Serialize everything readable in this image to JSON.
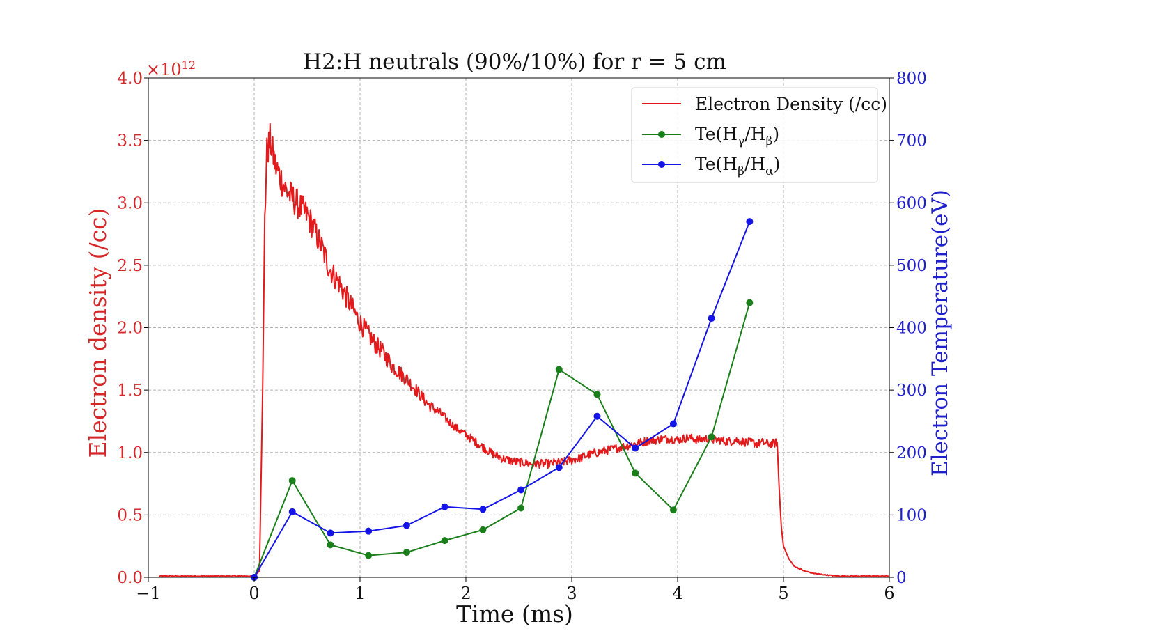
{
  "chart_data": {
    "type": "line",
    "title": "H2:H neutrals (90%/10%) for r = 5 cm",
    "xlabel": "Time (ms)",
    "ylabel_left": "Electron density (/cc)",
    "ylabel_right": "Electron Temperature(eV)",
    "left_axis_multiplier": "×10",
    "left_axis_exponent": "12",
    "xlim": [
      -1,
      6
    ],
    "ylim_left": [
      0.0,
      4.0
    ],
    "ylim_right": [
      0,
      800
    ],
    "grid": true,
    "legend_position": "top-right",
    "x_ticks": [
      {
        "value": -1,
        "label": "−1"
      },
      {
        "value": 0,
        "label": "0"
      },
      {
        "value": 1,
        "label": "1"
      },
      {
        "value": 2,
        "label": "2"
      },
      {
        "value": 3,
        "label": "3"
      },
      {
        "value": 4,
        "label": "4"
      },
      {
        "value": 5,
        "label": "5"
      },
      {
        "value": 6,
        "label": "6"
      }
    ],
    "y_left_ticks": [
      {
        "value": 0.0,
        "label": "0.0"
      },
      {
        "value": 0.5,
        "label": "0.5"
      },
      {
        "value": 1.0,
        "label": "1.0"
      },
      {
        "value": 1.5,
        "label": "1.5"
      },
      {
        "value": 2.0,
        "label": "2.0"
      },
      {
        "value": 2.5,
        "label": "2.5"
      },
      {
        "value": 3.0,
        "label": "3.0"
      },
      {
        "value": 3.5,
        "label": "3.5"
      },
      {
        "value": 4.0,
        "label": "4.0"
      }
    ],
    "y_right_ticks": [
      {
        "value": 0,
        "label": "0"
      },
      {
        "value": 100,
        "label": "100"
      },
      {
        "value": 200,
        "label": "200"
      },
      {
        "value": 300,
        "label": "300"
      },
      {
        "value": 400,
        "label": "400"
      },
      {
        "value": 500,
        "label": "500"
      },
      {
        "value": 600,
        "label": "600"
      },
      {
        "value": 700,
        "label": "700"
      },
      {
        "value": 800,
        "label": "800"
      }
    ],
    "colors": {
      "left_axis": "#d62728",
      "right_axis": "#1f1fcc",
      "grid": "#b0b0b0"
    },
    "series": [
      {
        "name": "Electron Density (/cc)",
        "axis": "left",
        "color": "#e31a1c",
        "marker": "none",
        "x": [
          -0.9,
          -0.5,
          -0.1,
          0.0,
          0.05,
          0.08,
          0.1,
          0.12,
          0.15,
          0.2,
          0.25,
          0.3,
          0.35,
          0.4,
          0.45,
          0.5,
          0.55,
          0.6,
          0.65,
          0.7,
          0.75,
          0.8,
          0.85,
          0.9,
          0.95,
          1.0,
          1.05,
          1.1,
          1.15,
          1.2,
          1.25,
          1.3,
          1.35,
          1.4,
          1.45,
          1.5,
          1.55,
          1.6,
          1.65,
          1.7,
          1.75,
          1.8,
          1.85,
          1.9,
          1.95,
          2.0,
          2.05,
          2.1,
          2.15,
          2.2,
          2.25,
          2.3,
          2.35,
          2.4,
          2.45,
          2.5,
          2.55,
          2.6,
          2.65,
          2.7,
          2.75,
          2.8,
          2.85,
          2.9,
          2.95,
          3.0,
          3.05,
          3.1,
          3.15,
          3.2,
          3.25,
          3.3,
          3.35,
          3.4,
          3.45,
          3.5,
          3.55,
          3.6,
          3.65,
          3.7,
          3.75,
          3.8,
          3.85,
          3.9,
          3.95,
          4.0,
          4.05,
          4.1,
          4.15,
          4.2,
          4.25,
          4.3,
          4.35,
          4.4,
          4.45,
          4.5,
          4.55,
          4.6,
          4.65,
          4.7,
          4.75,
          4.8,
          4.85,
          4.9,
          4.94,
          4.96,
          4.98,
          5.0,
          5.05,
          5.1,
          5.2,
          5.3,
          5.5,
          6.0
        ],
        "values": [
          0.01,
          0.01,
          0.01,
          0.01,
          0.05,
          1.5,
          2.9,
          3.4,
          3.5,
          3.3,
          3.2,
          3.1,
          3.05,
          3.0,
          2.95,
          2.9,
          2.82,
          2.72,
          2.62,
          2.5,
          2.42,
          2.36,
          2.28,
          2.2,
          2.12,
          2.04,
          1.98,
          1.92,
          1.86,
          1.82,
          1.76,
          1.7,
          1.66,
          1.62,
          1.58,
          1.53,
          1.48,
          1.43,
          1.38,
          1.35,
          1.32,
          1.28,
          1.24,
          1.2,
          1.17,
          1.14,
          1.11,
          1.08,
          1.05,
          1.02,
          0.99,
          0.97,
          0.95,
          0.94,
          0.93,
          0.92,
          0.92,
          0.91,
          0.91,
          0.91,
          0.91,
          0.91,
          0.92,
          0.92,
          0.93,
          0.94,
          0.95,
          0.96,
          0.98,
          0.99,
          1.0,
          1.01,
          1.02,
          1.03,
          1.04,
          1.05,
          1.06,
          1.07,
          1.08,
          1.09,
          1.1,
          1.1,
          1.11,
          1.11,
          1.11,
          1.1,
          1.11,
          1.12,
          1.11,
          1.1,
          1.11,
          1.11,
          1.1,
          1.1,
          1.09,
          1.09,
          1.1,
          1.09,
          1.08,
          1.08,
          1.07,
          1.08,
          1.07,
          1.07,
          1.08,
          0.7,
          0.4,
          0.25,
          0.15,
          0.09,
          0.05,
          0.03,
          0.01,
          0.01
        ]
      },
      {
        "name": "Te(Hγ/Hβ)",
        "label_base": "Te(H",
        "label_sub1": "γ",
        "label_mid": "/H",
        "label_sub2": "β",
        "label_end": ")",
        "axis": "right",
        "color": "#1a7f1a",
        "marker": "circle",
        "x": [
          0.0,
          0.36,
          0.72,
          1.08,
          1.44,
          1.8,
          2.16,
          2.52,
          2.88,
          3.24,
          3.6,
          3.96,
          4.32,
          4.68
        ],
        "values": [
          0,
          155,
          52,
          35,
          40,
          59,
          76,
          111,
          333,
          293,
          167,
          108,
          225,
          440
        ]
      },
      {
        "name": "Te(Hβ/Hα)",
        "label_base": "Te(H",
        "label_sub1": "β",
        "label_mid": "/H",
        "label_sub2": "α",
        "label_end": ")",
        "axis": "right",
        "color": "#1414e6",
        "marker": "circle",
        "x": [
          0.0,
          0.36,
          0.72,
          1.08,
          1.44,
          1.8,
          2.16,
          2.52,
          2.88,
          3.24,
          3.6,
          3.96,
          4.32,
          4.68
        ],
        "values": [
          0,
          105,
          71,
          74,
          83,
          113,
          109,
          140,
          176,
          258,
          207,
          246,
          415,
          570
        ]
      }
    ]
  }
}
